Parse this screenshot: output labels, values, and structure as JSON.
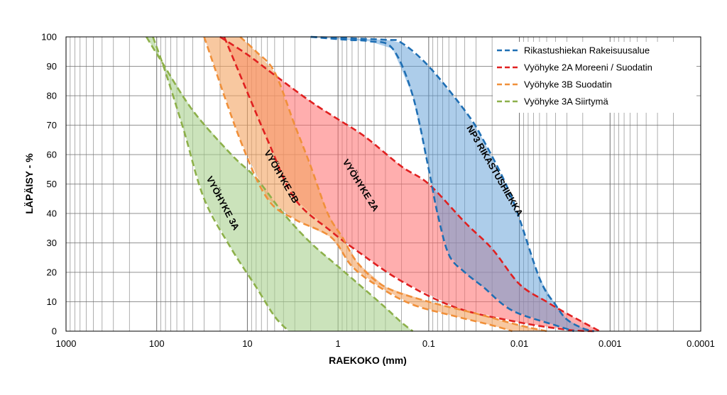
{
  "chart_data": {
    "type": "area",
    "x_scale": "log",
    "x_reversed": true,
    "xlim": [
      1000,
      0.0001
    ],
    "ylim": [
      0,
      100
    ],
    "grid": true,
    "legend_placement": "top-right",
    "xlabel": "RAEKOKO (mm)",
    "ylabel": "LÄPÄISY - %",
    "x_ticks": [
      {
        "value": 1000,
        "label": "1000"
      },
      {
        "value": 100,
        "label": "100"
      },
      {
        "value": 10,
        "label": "10"
      },
      {
        "value": 1,
        "label": "1"
      },
      {
        "value": 0.1,
        "label": "0.1"
      },
      {
        "value": 0.01,
        "label": "0.01"
      },
      {
        "value": 0.001,
        "label": "0.001"
      },
      {
        "value": 0.0001,
        "label": "0.0001"
      }
    ],
    "y_ticks": [
      {
        "value": 0,
        "label": "0"
      },
      {
        "value": 10,
        "label": "10"
      },
      {
        "value": 20,
        "label": "20"
      },
      {
        "value": 30,
        "label": "30"
      },
      {
        "value": 40,
        "label": "40"
      },
      {
        "value": 50,
        "label": "50"
      },
      {
        "value": 60,
        "label": "60"
      },
      {
        "value": 70,
        "label": "70"
      },
      {
        "value": 80,
        "label": "80"
      },
      {
        "value": 90,
        "label": "90"
      },
      {
        "value": 100,
        "label": "100"
      }
    ],
    "series": [
      {
        "key": "rikastus",
        "name": "Rikastushiekan  Rakeisuusalue",
        "color": "#1f6fb4",
        "fill": "#5b9bd5",
        "fill_opacity": 0.5,
        "coarse": [
          [
            2,
            100
          ],
          [
            0.8,
            99
          ],
          [
            0.45,
            98.5
          ],
          [
            0.25,
            96
          ],
          [
            0.15,
            80
          ],
          [
            0.1,
            55
          ],
          [
            0.08,
            40
          ],
          [
            0.06,
            26
          ],
          [
            0.04,
            20
          ],
          [
            0.025,
            15
          ],
          [
            0.012,
            7
          ],
          [
            0.004,
            2
          ],
          [
            0.0025,
            0
          ]
        ],
        "fine": [
          [
            2,
            100
          ],
          [
            0.3,
            99
          ],
          [
            0.2,
            98
          ],
          [
            0.1,
            90
          ],
          [
            0.04,
            75
          ],
          [
            0.025,
            65
          ],
          [
            0.012,
            45
          ],
          [
            0.006,
            18
          ],
          [
            0.004,
            9
          ],
          [
            0.003,
            4
          ],
          [
            0.002,
            1
          ],
          [
            0.0015,
            0
          ]
        ]
      },
      {
        "key": "z2a",
        "name": "Vyöhyke 2A Moreeni / Suodatin",
        "color": "#e02020",
        "fill": "#ff6b6b",
        "fill_opacity": 0.55,
        "coarse": [
          [
            18,
            100
          ],
          [
            6,
            65
          ],
          [
            3,
            45
          ],
          [
            1.2,
            34
          ],
          [
            0.6,
            27
          ],
          [
            0.2,
            17
          ],
          [
            0.05,
            8
          ],
          [
            0.01,
            3
          ],
          [
            0.003,
            0.5
          ],
          [
            0.0015,
            0
          ]
        ],
        "fine": [
          [
            20,
            100
          ],
          [
            10,
            94
          ],
          [
            5,
            87
          ],
          [
            2,
            78
          ],
          [
            1,
            72
          ],
          [
            0.5,
            66
          ],
          [
            0.2,
            56
          ],
          [
            0.1,
            50
          ],
          [
            0.04,
            37
          ],
          [
            0.02,
            28
          ],
          [
            0.01,
            16
          ],
          [
            0.005,
            10
          ],
          [
            0.003,
            6
          ],
          [
            0.0013,
            0
          ]
        ]
      },
      {
        "key": "z3b",
        "name": "Vyöhyke 3B Suodatin",
        "color": "#f0903a",
        "fill": "#f4a460",
        "fill_opacity": 0.6,
        "coarse": [
          [
            30,
            100
          ],
          [
            12,
            65
          ],
          [
            6,
            45
          ],
          [
            3,
            38
          ],
          [
            1.2,
            32
          ],
          [
            0.7,
            22
          ],
          [
            0.35,
            15
          ],
          [
            0.15,
            9
          ],
          [
            0.05,
            5
          ],
          [
            0.02,
            2
          ],
          [
            0.012,
            0
          ]
        ],
        "fine": [
          [
            12,
            100
          ],
          [
            8,
            95
          ],
          [
            5,
            88
          ],
          [
            3,
            70
          ],
          [
            2,
            56
          ],
          [
            1.3,
            40
          ],
          [
            0.9,
            32
          ],
          [
            0.6,
            23
          ],
          [
            0.3,
            15
          ],
          [
            0.1,
            10
          ],
          [
            0.03,
            6
          ],
          [
            0.01,
            2
          ],
          [
            0.005,
            0
          ]
        ]
      },
      {
        "key": "z3a",
        "name": "Vyöhyke 3A Siirtymä",
        "color": "#8db04a",
        "fill": "#a9d18e",
        "fill_opacity": 0.6,
        "coarse": [
          [
            110,
            100
          ],
          [
            80,
            88
          ],
          [
            50,
            68
          ],
          [
            30,
            45
          ],
          [
            15,
            28
          ],
          [
            8,
            15
          ],
          [
            5,
            5
          ],
          [
            3.5,
            0
          ]
        ],
        "fine": [
          [
            130,
            100
          ],
          [
            90,
            92
          ],
          [
            40,
            75
          ],
          [
            15,
            60
          ],
          [
            8,
            52
          ],
          [
            4,
            40
          ],
          [
            2,
            30
          ],
          [
            1,
            22
          ],
          [
            0.5,
            14
          ],
          [
            0.3,
            8
          ],
          [
            0.2,
            3
          ],
          [
            0.15,
            0
          ]
        ]
      }
    ],
    "zone_labels": [
      {
        "text": "VYÖHYKE 3A",
        "x": 20,
        "y": 43,
        "rotate": 62
      },
      {
        "text": "VYÖHYKE 2B",
        "x": 4.5,
        "y": 52,
        "rotate": 60
      },
      {
        "text": "VYÖHYKE 2A",
        "x": 0.6,
        "y": 49,
        "rotate": 58
      },
      {
        "text": "NP3 RIKASTUSHIEKKA",
        "x": 0.02,
        "y": 54,
        "rotate": 60
      }
    ]
  }
}
